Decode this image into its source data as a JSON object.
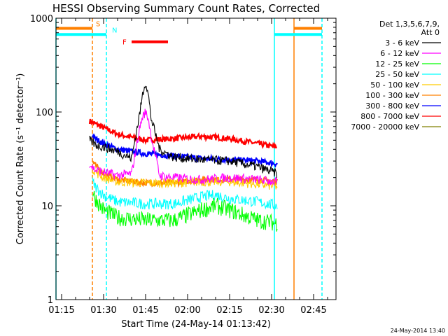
{
  "chart_data": {
    "type": "line",
    "title": "HESSI Observing Summary Count Rates, Corrected",
    "xlabel": "Start Time (24-May-14 01:13:42)",
    "ylabel": "Corrected Count Rate (s⁻¹ detector⁻¹)",
    "y_scale": "log",
    "xlim": [
      "01:13",
      "02:53"
    ],
    "ylim": [
      1,
      1000
    ],
    "x_ticks": [
      "01:15",
      "01:30",
      "01:45",
      "02:00",
      "02:15",
      "02:30",
      "02:45"
    ],
    "y_ticks": [
      "1",
      "10",
      "100",
      "1000"
    ],
    "grid": false,
    "legend_placement": "right",
    "legend_title_lines": [
      "Det 1,3,5,6,7,9,",
      "Att 0"
    ],
    "series": [
      {
        "name": "3 - 6 keV",
        "color": "#000000",
        "x": [
          "01:25",
          "01:27",
          "01:35",
          "01:40",
          "01:43",
          "01:44",
          "01:45",
          "01:46",
          "01:47",
          "01:50",
          "01:55",
          "02:05",
          "02:15",
          "02:25",
          "02:32"
        ],
        "values": [
          50,
          45,
          38,
          32,
          100,
          160,
          210,
          150,
          85,
          40,
          33,
          31,
          30,
          26,
          22
        ]
      },
      {
        "name": "6 - 12 keV",
        "color": "#ff00ff",
        "x": [
          "01:25",
          "01:27",
          "01:35",
          "01:40",
          "01:43",
          "01:44",
          "01:45",
          "01:46",
          "01:47",
          "01:50",
          "01:55",
          "02:05",
          "02:15",
          "02:25",
          "02:32"
        ],
        "values": [
          28,
          24,
          21,
          22,
          70,
          90,
          100,
          85,
          55,
          21,
          20,
          19,
          20,
          19,
          18
        ]
      },
      {
        "name": "12 - 25 keV",
        "color": "#00ff00",
        "x": [
          "01:26",
          "01:27",
          "01:30",
          "01:35",
          "01:45",
          "01:55",
          "02:05",
          "02:10",
          "02:15",
          "02:25",
          "02:32"
        ],
        "values": [
          14,
          12,
          9,
          7.5,
          7,
          7,
          9,
          10,
          9,
          7,
          6.5
        ]
      },
      {
        "name": "25 - 50 keV",
        "color": "#00ffff",
        "x": [
          "01:26",
          "01:27",
          "01:30",
          "01:35",
          "01:45",
          "01:55",
          "02:05",
          "02:10",
          "02:15",
          "02:25",
          "02:32"
        ],
        "values": [
          18,
          16,
          13,
          11,
          10.5,
          10.5,
          12.5,
          13,
          12,
          11,
          10
        ]
      },
      {
        "name": "50 - 100 keV",
        "color": "#ffcc00",
        "x": [
          "01:26",
          "01:27",
          "01:30",
          "01:35",
          "01:45",
          "01:55",
          "02:05",
          "02:15",
          "02:25",
          "02:32"
        ],
        "values": [
          25,
          23,
          20,
          18,
          17.5,
          17.5,
          18,
          18,
          17,
          16
        ]
      },
      {
        "name": "100 - 300 keV",
        "color": "#ff8000",
        "x": [
          "01:26",
          "01:27",
          "01:30",
          "01:35",
          "01:45",
          "01:55",
          "02:05",
          "02:15",
          "02:25",
          "02:32"
        ],
        "values": [
          30,
          27,
          22,
          19,
          17.5,
          17.5,
          19,
          19,
          19,
          18
        ]
      },
      {
        "name": "300 - 800 keV",
        "color": "#0000ff",
        "x": [
          "01:26",
          "01:27",
          "01:30",
          "01:35",
          "01:45",
          "01:55",
          "02:05",
          "02:15",
          "02:25",
          "02:32"
        ],
        "values": [
          56,
          52,
          46,
          40,
          36,
          34,
          32,
          31,
          30,
          28
        ]
      },
      {
        "name": "800 - 7000 keV",
        "color": "#ff0000",
        "x": [
          "01:25",
          "01:27",
          "01:30",
          "01:35",
          "01:45",
          "01:55",
          "02:05",
          "02:15",
          "02:25",
          "02:32"
        ],
        "values": [
          80,
          75,
          68,
          58,
          50,
          52,
          55,
          52,
          46,
          42
        ]
      },
      {
        "name": "7000 - 20000 keV",
        "color": "#808000",
        "x": [],
        "values": []
      }
    ],
    "flag_bars": [
      {
        "label": "S",
        "color": "#ff8000",
        "level": 780,
        "segments": [
          [
            "01:13",
            "01:26"
          ],
          [
            "02:38",
            "02:48"
          ]
        ]
      },
      {
        "label": "N",
        "color": "#00ffff",
        "level": 670,
        "segments": [
          [
            "01:13",
            "01:31"
          ],
          [
            "02:31",
            "02:48"
          ]
        ]
      },
      {
        "label": "F",
        "color": "#ff0000",
        "level": 560,
        "segments": [
          [
            "01:40",
            "01:53"
          ]
        ]
      }
    ],
    "vertical_markers": [
      {
        "time": "01:13",
        "color": "#00ffff",
        "style": "solid"
      },
      {
        "time": "01:26",
        "color": "#ff8000",
        "style": "dashed"
      },
      {
        "time": "01:31",
        "color": "#00ffff",
        "style": "dashed"
      },
      {
        "time": "02:31",
        "color": "#00ffff",
        "style": "solid"
      },
      {
        "time": "02:38",
        "color": "#ff8000",
        "style": "solid"
      },
      {
        "time": "02:48",
        "color": "#00ffff",
        "style": "dashed"
      }
    ],
    "timestamp": "24-May-2014 13:40"
  }
}
